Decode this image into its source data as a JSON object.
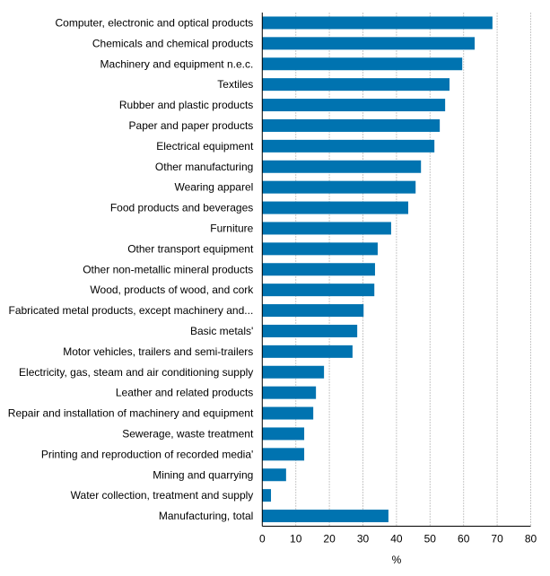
{
  "chart_data": {
    "type": "bar",
    "orientation": "horizontal",
    "categories": [
      "Computer, electronic and optical products",
      "Chemicals and chemical products",
      "Machinery and equipment n.e.c.",
      "Textiles",
      "Rubber and plastic products",
      "Paper and paper products",
      "Electrical equipment",
      "Other manufacturing",
      "Wearing apparel",
      "Food products and beverages",
      "Furniture",
      "Other transport equipment",
      "Other non-metallic mineral products",
      "Wood, products of wood, and cork",
      "Fabricated metal products, except machinery and...",
      "Basic metals'",
      "Motor vehicles, trailers and semi-trailers",
      "Electricity, gas, steam and air conditioning supply",
      "Leather and related products",
      "Repair and installation of machinery and equipment",
      "Sewerage, waste treatment",
      "Printing and reproduction of recorded media'",
      "Mining and quarrying",
      "Water collection, treatment and supply",
      "Manufacturing, total"
    ],
    "values": [
      68.6,
      63.3,
      59.6,
      55.8,
      54.5,
      52.9,
      51.3,
      47.3,
      45.7,
      43.5,
      38.4,
      34.4,
      33.6,
      33.4,
      30.2,
      28.3,
      26.9,
      18.4,
      16.0,
      15.2,
      12.5,
      12.5,
      7.1,
      2.6,
      37.6
    ],
    "xlabel": "%",
    "ylabel": "",
    "xlim": [
      0,
      80
    ],
    "xticks": [
      "0",
      "10",
      "20",
      "30",
      "40",
      "50",
      "60",
      "70",
      "80"
    ],
    "grid": "vertical",
    "legend": "none",
    "bar_color": "#0073b0",
    "grid_color": "#c8c8c8"
  }
}
